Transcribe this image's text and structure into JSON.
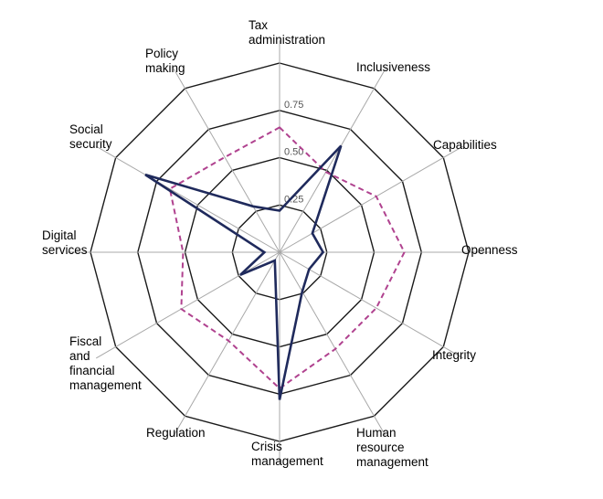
{
  "chart_data": {
    "type": "radar",
    "categories": [
      "Tax administration",
      "Inclusiveness",
      "Capabilities",
      "Openness",
      "Integrity",
      "Human resource management",
      "Crisis management",
      "Regulation",
      "Fiscal and financial management",
      "Digital services",
      "Social security",
      "Policy making"
    ],
    "category_lines": [
      [
        "Tax",
        "administration"
      ],
      [
        "Inclusiveness"
      ],
      [
        "Capabilities"
      ],
      [
        "Openness"
      ],
      [
        "Integrity"
      ],
      [
        "Human",
        "resource",
        "management"
      ],
      [
        "Crisis",
        "management"
      ],
      [
        "Regulation"
      ],
      [
        "Fiscal",
        "and",
        "financial",
        "management"
      ],
      [
        "Digital",
        "services"
      ],
      [
        "Social",
        "security"
      ],
      [
        "Policy",
        "making"
      ]
    ],
    "series": [
      {
        "values": [
          0.22,
          0.65,
          0.2,
          0.23,
          0.18,
          0.24,
          0.78,
          0.05,
          0.24,
          0.08,
          0.82,
          0.28
        ],
        "color": "#1f2a5c",
        "line_style": "solid"
      },
      {
        "values": [
          0.66,
          0.49,
          0.59,
          0.66,
          0.59,
          0.59,
          0.72,
          0.54,
          0.6,
          0.51,
          0.67,
          0.58
        ],
        "color": "#b0428f",
        "line_style": "dashed"
      }
    ],
    "rings": [
      0.25,
      0.5,
      0.75,
      1.0
    ],
    "tick_labels": [
      "0.25",
      "0.50",
      "0.75"
    ],
    "rlim": [
      0,
      1
    ]
  }
}
